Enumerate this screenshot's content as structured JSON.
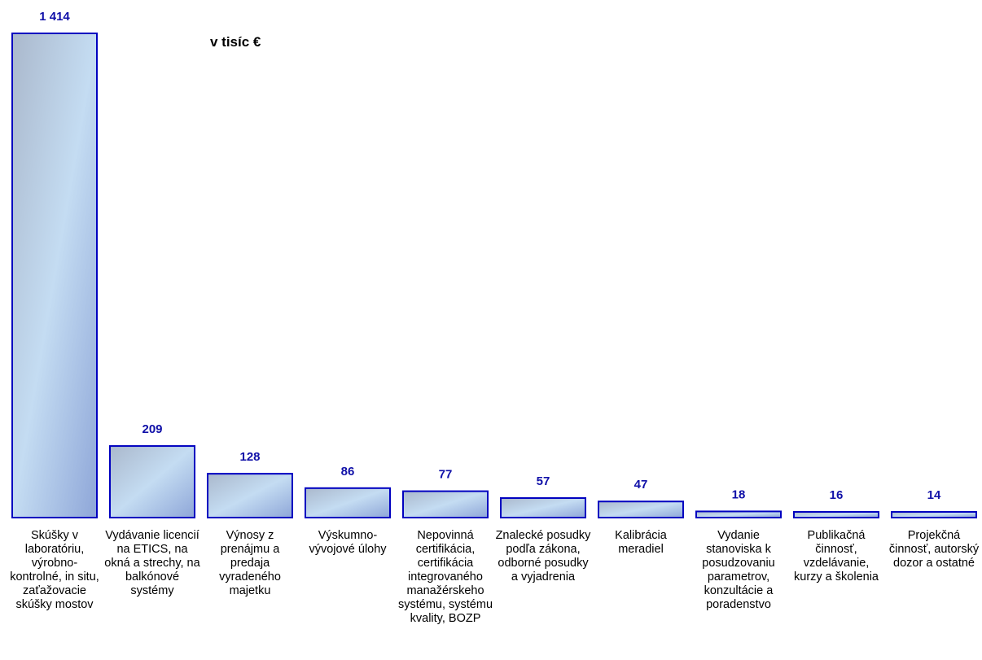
{
  "chart_data": {
    "type": "bar",
    "unit_label": "v tisíc €",
    "categories": [
      "Skúšky v laboratóriu, výrobno-kontrolné, in situ, zaťažovacie skúšky mostov",
      "Vydávanie licencií  na ETICS, na okná a strechy, na balkónové systémy",
      "Výnosy z prenájmu a predaja vyradeného majetku",
      "Výskumno-vývojové úlohy",
      "Nepovinná certifikácia, certifikácia integrovaného manažérskeho systému, systému kvality, BOZP",
      "Znalecké posudky podľa zákona, odborné posudky a vyjadrenia",
      "Kalibrácia meradiel",
      "Vydanie stanoviska k posudzovaniu parametrov, konzultácie a poradenstvo",
      "Publikačná činnosť, vzdelávanie, kurzy a školenia",
      "Projekčná činnosť, autorský dozor a ostatné"
    ],
    "values": [
      1414,
      209,
      128,
      86,
      77,
      57,
      47,
      18,
      16,
      14
    ],
    "value_labels": [
      "1 414",
      "209",
      "128",
      "86",
      "77",
      "57",
      "47",
      "18",
      "16",
      "14"
    ],
    "ylim": [
      0,
      1414
    ],
    "grid": false,
    "legend": "none",
    "colors": {
      "bar_border": "#0000c0",
      "bar_fill_light": "#c4dcf2",
      "bar_fill_mid": "#9fb4d6",
      "value_text": "#1010a8"
    }
  }
}
